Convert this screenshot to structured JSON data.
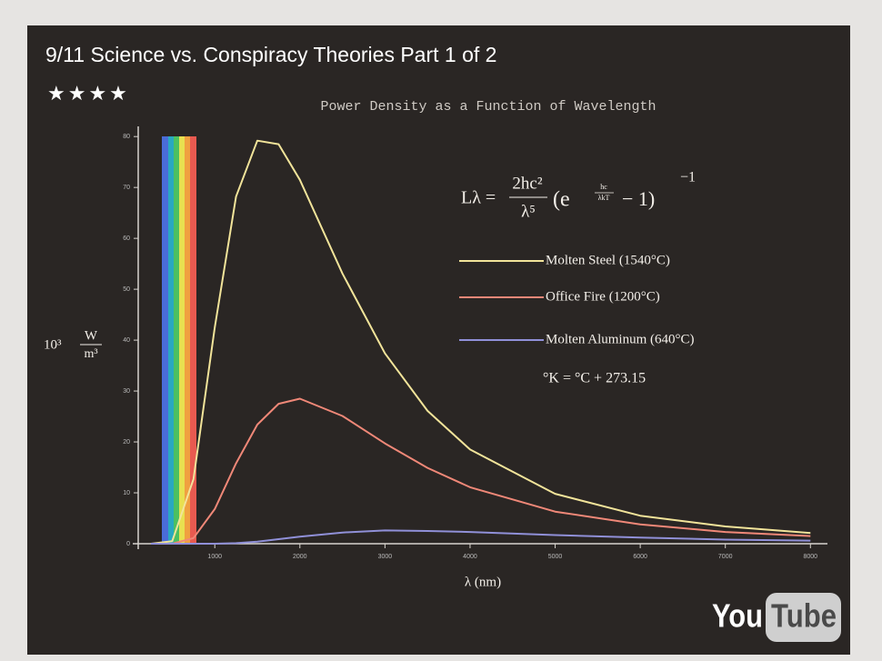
{
  "video": {
    "title": "9/11 Science vs. Conspiracy Theories Part 1 of 2",
    "rating": "★★★★",
    "logo": {
      "left": "You",
      "right": "Tube"
    }
  },
  "chart_data": {
    "type": "line",
    "title": "Power Density as a Function of Wavelength",
    "x_label": "λ (nm)",
    "y_label": {
      "prefix": "10³",
      "numerator": "W",
      "denominator": "m³"
    },
    "formula": {
      "lhs": "Lλ =",
      "numerator": "2hc²",
      "denominator": "λ⁵",
      "open": "(e",
      "exp_num": "hc",
      "exp_den": "λkT",
      "close": "− 1)",
      "power": "−1"
    },
    "annotation": "°K = °C + 273.15",
    "x": [
      250,
      500,
      750,
      1000,
      1250,
      1500,
      1750,
      2000,
      2500,
      3000,
      3500,
      4000,
      5000,
      6000,
      7000,
      8000
    ],
    "series": [
      {
        "name": "Molten Steel (1540°C)",
        "color": "#f2e49a",
        "values": [
          0,
          0.5,
          12.7,
          42.5,
          68.2,
          79.2,
          78.5,
          71.5,
          53.1,
          37.4,
          26.1,
          18.5,
          9.8,
          5.5,
          3.4,
          2.1
        ]
      },
      {
        "name": "Office Fire (1200°C)",
        "color": "#f08878",
        "values": [
          0,
          0,
          1.1,
          6.8,
          15.8,
          23.4,
          27.5,
          28.5,
          25.1,
          19.7,
          14.9,
          11.1,
          6.3,
          3.8,
          2.3,
          1.5
        ]
      },
      {
        "name": "Molten Aluminum (640°C)",
        "color": "#9090d8",
        "values": [
          0,
          0,
          0,
          0,
          0.1,
          0.4,
          0.9,
          1.4,
          2.2,
          2.6,
          2.5,
          2.3,
          1.7,
          1.2,
          0.8,
          0.6
        ]
      }
    ],
    "xlim": [
      100,
      8200
    ],
    "xticks": [
      1000,
      2000,
      3000,
      4000,
      5000,
      6000,
      7000,
      8000
    ],
    "ylim": [
      0,
      82
    ],
    "yticks": [
      0,
      10,
      20,
      30,
      40,
      50,
      60,
      70,
      80
    ]
  }
}
